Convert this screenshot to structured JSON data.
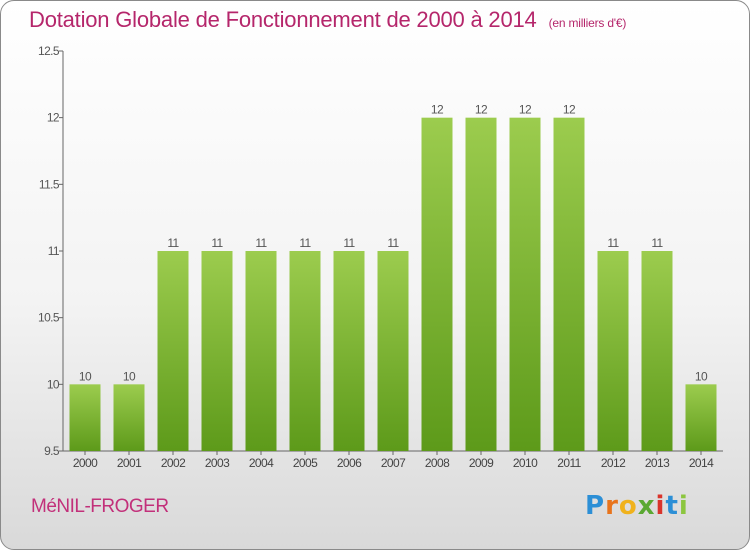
{
  "chart_data": {
    "type": "bar",
    "title": "Dotation Globale de Fonctionnement de 2000 à 2014",
    "subtitle": "(en milliers d'€)",
    "categories": [
      "2000",
      "2001",
      "2002",
      "2003",
      "2004",
      "2005",
      "2006",
      "2007",
      "2008",
      "2009",
      "2010",
      "2011",
      "2012",
      "2013",
      "2014"
    ],
    "values": [
      10,
      10,
      11,
      11,
      11,
      11,
      11,
      11,
      12,
      12,
      12,
      12,
      11,
      11,
      10
    ],
    "data_labels": [
      "10",
      "10",
      "11",
      "11",
      "11",
      "11",
      "11",
      "11",
      "12",
      "12",
      "12",
      "12",
      "11",
      "11",
      "10"
    ],
    "y_ticks": [
      "9.5",
      "10",
      "10.5",
      "11",
      "11.5",
      "12",
      "12.5"
    ],
    "ylim": [
      9.5,
      12.5
    ],
    "xlabel": "",
    "ylabel": "",
    "grid": false,
    "bar_color_top": "#9ccc4e",
    "bar_color_bottom": "#5d9a1a"
  },
  "commune_name": "MéNIL-FROGER",
  "logo": {
    "letters": [
      "P",
      "r",
      "o",
      "x",
      "i",
      "t",
      "i"
    ],
    "colors": [
      "#2c8fd6",
      "#e8741c",
      "#f0b21c",
      "#5aa832",
      "#d9342b",
      "#2c8fd6",
      "#8cc63f"
    ]
  },
  "colors": {
    "title": "#b5266b",
    "axis": "#555555"
  }
}
